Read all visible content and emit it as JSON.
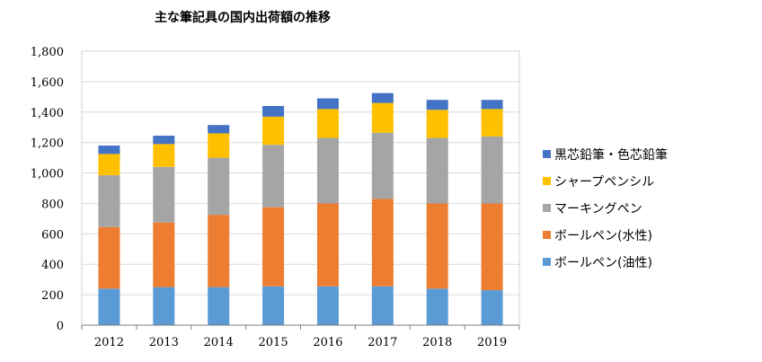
{
  "chart_data": {
    "type": "bar",
    "stacked": true,
    "title": "主な筆記具の国内出荷額の推移",
    "xlabel": "",
    "ylabel": "",
    "ylim": [
      0,
      1800
    ],
    "yticks": [
      0,
      200,
      400,
      600,
      800,
      1000,
      1200,
      1400,
      1600,
      1800
    ],
    "ytick_labels": [
      "0",
      "200",
      "400",
      "600",
      "800",
      "1,000",
      "1,200",
      "1,400",
      "1,600",
      "1,800"
    ],
    "categories": [
      "2012",
      "2013",
      "2014",
      "2015",
      "2016",
      "2017",
      "2018",
      "2019"
    ],
    "series": [
      {
        "name": "ボールペン(油性)",
        "color": "#5B9BD5",
        "values": [
          240,
          250,
          250,
          255,
          255,
          255,
          240,
          230
        ]
      },
      {
        "name": "ボールペン(水性)",
        "color": "#ED7D31",
        "values": [
          405,
          425,
          475,
          520,
          545,
          575,
          560,
          570
        ]
      },
      {
        "name": "マーキングペン",
        "color": "#A5A5A5",
        "values": [
          340,
          365,
          375,
          410,
          430,
          435,
          430,
          440
        ]
      },
      {
        "name": "シャープペンシル",
        "color": "#FFC000",
        "values": [
          140,
          150,
          160,
          185,
          190,
          195,
          185,
          180
        ]
      },
      {
        "name": "黒芯鉛筆・色芯鉛筆",
        "color": "#4472C4",
        "values": [
          55,
          55,
          55,
          70,
          70,
          65,
          65,
          60
        ]
      }
    ],
    "legend_position": "right",
    "legend_order": [
      4,
      3,
      2,
      1,
      0
    ],
    "grid": true
  }
}
